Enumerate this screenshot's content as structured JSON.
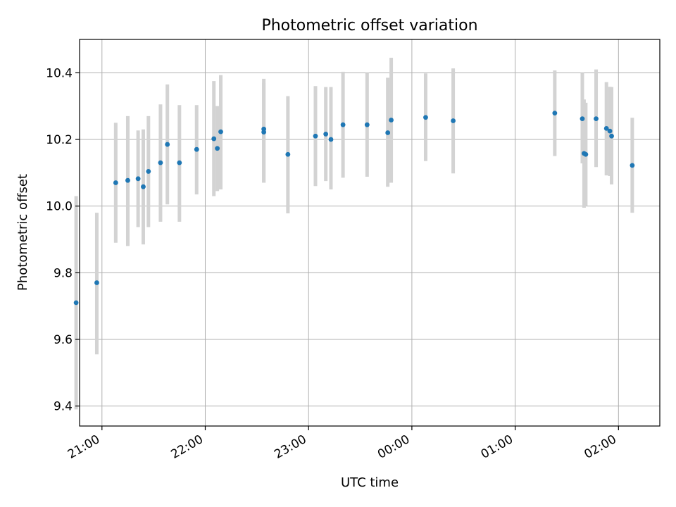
{
  "chart_data": {
    "type": "scatter",
    "title": "Photometric offset variation",
    "xlabel": "UTC time",
    "ylabel": "Photometric offset",
    "x_axis_type": "time",
    "x_day_start": "day 1",
    "xlim": [
      "20:47",
      "02:24"
    ],
    "ylim": [
      9.34,
      10.5
    ],
    "grid": true,
    "x_ticks": [
      "21:00",
      "22:00",
      "23:00",
      "00:00",
      "01:00",
      "02:00"
    ],
    "y_ticks": [
      "9.4",
      "9.6",
      "9.8",
      "10.0",
      "10.2",
      "10.4"
    ],
    "point_color": "#1f77b4",
    "errorbar_color": "#d3d3d3",
    "points": [
      {
        "x": "20:45",
        "y": 9.71,
        "lo": 9.39,
        "hi": 10.03
      },
      {
        "x": "20:57",
        "y": 9.77,
        "lo": 9.555,
        "hi": 9.98
      },
      {
        "x": "21:08",
        "y": 10.07,
        "lo": 9.89,
        "hi": 10.25
      },
      {
        "x": "21:15",
        "y": 10.077,
        "lo": 9.88,
        "hi": 10.27
      },
      {
        "x": "21:21",
        "y": 10.082,
        "lo": 9.937,
        "hi": 10.227
      },
      {
        "x": "21:24",
        "y": 10.058,
        "lo": 9.885,
        "hi": 10.23
      },
      {
        "x": "21:27",
        "y": 10.104,
        "lo": 9.937,
        "hi": 10.27
      },
      {
        "x": "21:34",
        "y": 10.13,
        "lo": 9.953,
        "hi": 10.305
      },
      {
        "x": "21:38",
        "y": 10.185,
        "lo": 10.005,
        "hi": 10.365
      },
      {
        "x": "21:45",
        "y": 10.13,
        "lo": 9.953,
        "hi": 10.303
      },
      {
        "x": "21:55",
        "y": 10.17,
        "lo": 10.035,
        "hi": 10.303
      },
      {
        "x": "22:05",
        "y": 10.202,
        "lo": 10.03,
        "hi": 10.375
      },
      {
        "x": "22:07",
        "y": 10.173,
        "lo": 10.045,
        "hi": 10.3
      },
      {
        "x": "22:09",
        "y": 10.223,
        "lo": 10.05,
        "hi": 10.393
      },
      {
        "x": "22:34",
        "y": 10.231,
        "lo": 10.07,
        "hi": 10.382
      },
      {
        "x": "22:34",
        "y": 10.222,
        "lo": 10.07,
        "hi": 10.37
      },
      {
        "x": "22:48",
        "y": 10.155,
        "lo": 9.978,
        "hi": 10.33
      },
      {
        "x": "23:04",
        "y": 10.21,
        "lo": 10.06,
        "hi": 10.36
      },
      {
        "x": "23:10",
        "y": 10.216,
        "lo": 10.075,
        "hi": 10.357
      },
      {
        "x": "23:13",
        "y": 10.2,
        "lo": 10.05,
        "hi": 10.357
      },
      {
        "x": "23:20",
        "y": 10.244,
        "lo": 10.085,
        "hi": 10.403
      },
      {
        "x": "23:34",
        "y": 10.244,
        "lo": 10.088,
        "hi": 10.4
      },
      {
        "x": "23:46",
        "y": 10.22,
        "lo": 10.058,
        "hi": 10.385
      },
      {
        "x": "23:48",
        "y": 10.258,
        "lo": 10.07,
        "hi": 10.445
      },
      {
        "x": "00:08",
        "y": 10.266,
        "lo": 10.135,
        "hi": 10.398
      },
      {
        "x": "00:24",
        "y": 10.256,
        "lo": 10.098,
        "hi": 10.413
      },
      {
        "x": "01:23",
        "y": 10.279,
        "lo": 10.15,
        "hi": 10.407
      },
      {
        "x": "01:39",
        "y": 10.262,
        "lo": 10.128,
        "hi": 10.4
      },
      {
        "x": "01:40",
        "y": 10.158,
        "lo": 9.995,
        "hi": 10.32
      },
      {
        "x": "01:41",
        "y": 10.155,
        "lo": 10.0,
        "hi": 10.31
      },
      {
        "x": "01:47",
        "y": 10.262,
        "lo": 10.117,
        "hi": 10.41
      },
      {
        "x": "01:53",
        "y": 10.233,
        "lo": 10.092,
        "hi": 10.372
      },
      {
        "x": "01:55",
        "y": 10.225,
        "lo": 10.09,
        "hi": 10.358
      },
      {
        "x": "01:56",
        "y": 10.21,
        "lo": 10.065,
        "hi": 10.357
      },
      {
        "x": "02:08",
        "y": 10.122,
        "lo": 9.98,
        "hi": 10.265
      }
    ]
  }
}
